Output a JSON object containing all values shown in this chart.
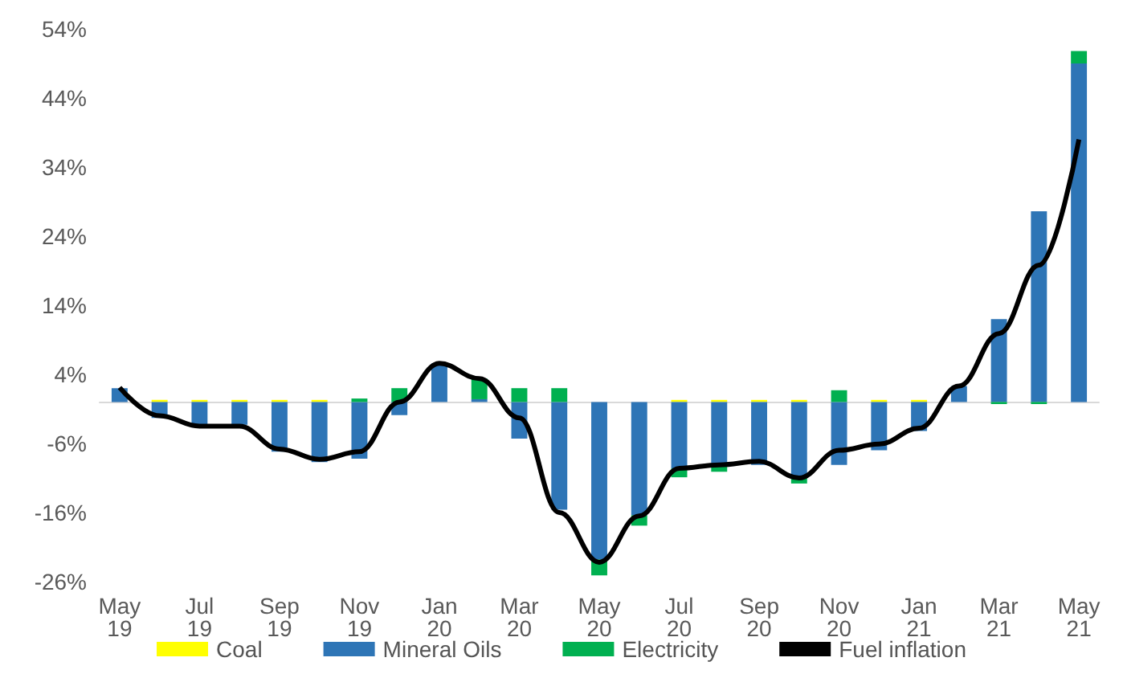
{
  "chart_data": {
    "type": "bar",
    "stacked": true,
    "categories": [
      "May 19",
      null,
      "Jul 19",
      null,
      "Sep 19",
      null,
      "Nov 19",
      null,
      "Jan 20",
      null,
      "Mar 20",
      null,
      "May 20",
      null,
      "Jul 20",
      null,
      "Sep 20",
      null,
      "Nov 20",
      null,
      "Jan 21",
      null,
      "Mar 21",
      null,
      "May 21"
    ],
    "series": [
      {
        "name": "Coal",
        "color": "#ffff00",
        "values": [
          0,
          0.3,
          0.3,
          0.3,
          0.3,
          0.3,
          0,
          0,
          0,
          0,
          0,
          0,
          0,
          0,
          0.3,
          0.3,
          0.3,
          0.3,
          0,
          0.3,
          0.3,
          0,
          0,
          0,
          0
        ]
      },
      {
        "name": "Mineral Oils",
        "color": "#2e75b6",
        "values": [
          2,
          -2.3,
          -3.7,
          -3.3,
          -7.2,
          -8.7,
          -8.2,
          -1.9,
          5.6,
          0.4,
          -5.3,
          -15.6,
          -22.8,
          -16.4,
          -9.6,
          -9.3,
          -9.1,
          -11,
          -9.1,
          -7,
          -4.2,
          2.3,
          12,
          27.6,
          49
        ]
      },
      {
        "name": "Electricity",
        "color": "#00b050",
        "values": [
          0,
          0,
          0,
          0,
          0,
          0,
          0.5,
          2,
          null,
          3,
          2,
          2,
          -2.3,
          -1.5,
          -1.3,
          -0.8,
          0,
          -0.8,
          1.7,
          0,
          0,
          0,
          -0.3,
          -0.3,
          1.8
        ]
      },
      {
        "name": "Fuel inflation",
        "type": "line",
        "color": "#000000",
        "marker": "none",
        "values": [
          2.1,
          -2,
          -3.5,
          -3.5,
          -6.8,
          -8.3,
          -7.2,
          0,
          5.6,
          3.4,
          -2.3,
          -16,
          -23.2,
          -16.5,
          -9.6,
          -9.1,
          -8.6,
          -11,
          -7,
          -6.1,
          -3.8,
          2.3,
          9.9,
          19.8,
          38
        ]
      }
    ],
    "ylim": [
      -26,
      54
    ],
    "yticks": [
      {
        "value": -26,
        "label": "-26%"
      },
      {
        "value": -16,
        "label": "-16%"
      },
      {
        "value": -6,
        "label": "-6%"
      },
      {
        "value": 4,
        "label": "4%"
      },
      {
        "value": 14,
        "label": "14%"
      },
      {
        "value": 24,
        "label": "24%"
      },
      {
        "value": 34,
        "label": "34%"
      },
      {
        "value": 44,
        "label": "44%"
      },
      {
        "value": 54,
        "label": "54%"
      }
    ],
    "grid": false,
    "legend": "bottom"
  }
}
